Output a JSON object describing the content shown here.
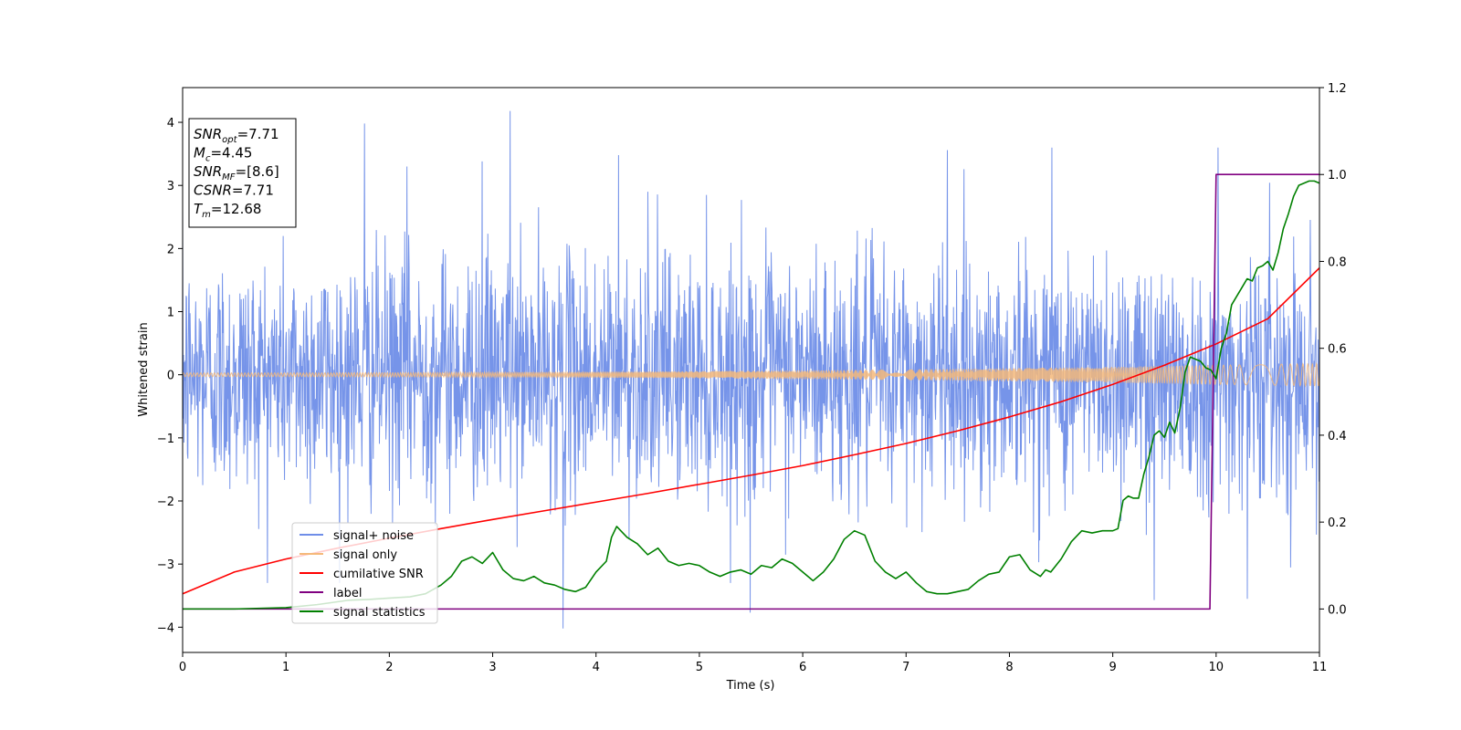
{
  "chart_data": {
    "type": "line",
    "title": "",
    "xlabel": "Time (s)",
    "ylabel": "Whitened strain",
    "xlim": [
      0,
      11
    ],
    "ylim_left": [
      -4.4,
      4.55
    ],
    "ylim_right": [
      -0.1,
      1.2
    ],
    "xticks": [
      0,
      1,
      2,
      3,
      4,
      5,
      6,
      7,
      8,
      9,
      10,
      11
    ],
    "yticks_left": [
      -4,
      -3,
      -2,
      -1,
      0,
      1,
      2,
      3,
      4
    ],
    "yticks_right": [
      0.0,
      0.2,
      0.4,
      0.6,
      0.8,
      1.0,
      1.2
    ],
    "grid": false,
    "legend_position": "lower-left",
    "info_box": [
      {
        "base": "SNR",
        "sub": "opt",
        "value": "=7.71"
      },
      {
        "base": "M",
        "sub": "c",
        "value": "=4.45"
      },
      {
        "base": "SNR",
        "sub": "MF",
        "value": "=[8.6]"
      },
      {
        "base": "CSNR",
        "sub": "",
        "value": "=7.71"
      },
      {
        "base": "T",
        "sub": "m",
        "value": "=12.68"
      }
    ],
    "series": [
      {
        "name": "signal+ noise",
        "axis": "left",
        "color": "#6f8ee8",
        "style": "noise band, approx. gaussian sigma ~0.95, peaks ~+4.2 / -4.0",
        "peaks": [
          {
            "x": 1.76,
            "y": 3.98
          },
          {
            "x": 2.17,
            "y": 3.3
          },
          {
            "x": 2.9,
            "y": 3.38
          },
          {
            "x": 3.17,
            "y": 4.18
          },
          {
            "x": 3.68,
            "y": -4.02
          },
          {
            "x": 4.22,
            "y": 3.48
          },
          {
            "x": 5.49,
            "y": -3.77
          },
          {
            "x": 7.4,
            "y": 3.56
          },
          {
            "x": 8.41,
            "y": 3.6
          },
          {
            "x": 9.4,
            "y": -3.57
          },
          {
            "x": 10.02,
            "y": 3.6
          },
          {
            "x": 10.3,
            "y": -3.55
          },
          {
            "x": 5.1,
            "y": -1.35
          },
          {
            "x": 4.5,
            "y": 2.9
          }
        ]
      },
      {
        "name": "signal only",
        "axis": "left",
        "color": "#f5b97a",
        "style": "chirp, amplitude growing from 0.03 to 0.18"
      },
      {
        "name": "cumilative SNR",
        "axis": "right",
        "color": "#ff0000",
        "x": [
          0,
          0.5,
          1,
          1.5,
          2,
          2.5,
          3,
          3.5,
          4,
          4.5,
          5,
          5.5,
          6,
          6.5,
          7,
          7.5,
          8,
          8.5,
          9,
          9.5,
          10,
          10.5,
          11
        ],
        "values": [
          0.035,
          0.085,
          0.115,
          0.14,
          0.163,
          0.185,
          0.206,
          0.226,
          0.246,
          0.266,
          0.287,
          0.308,
          0.33,
          0.355,
          0.381,
          0.41,
          0.442,
          0.477,
          0.517,
          0.561,
          0.61,
          0.668,
          0.785
        ]
      },
      {
        "name": "label",
        "axis": "right",
        "color": "#800080",
        "x": [
          0,
          9.94,
          10.0,
          11
        ],
        "values": [
          0.0,
          0.0,
          1.0,
          1.0
        ]
      },
      {
        "name": "signal statistics",
        "axis": "right",
        "color": "#008000",
        "x": [
          0,
          0.5,
          1,
          1.3,
          1.6,
          1.8,
          2,
          2.2,
          2.35,
          2.5,
          2.6,
          2.7,
          2.8,
          2.9,
          3.0,
          3.1,
          3.2,
          3.3,
          3.4,
          3.5,
          3.6,
          3.7,
          3.8,
          3.9,
          4.0,
          4.1,
          4.15,
          4.2,
          4.3,
          4.4,
          4.5,
          4.6,
          4.7,
          4.8,
          4.9,
          5.0,
          5.1,
          5.2,
          5.3,
          5.4,
          5.5,
          5.6,
          5.7,
          5.8,
          5.9,
          6.0,
          6.1,
          6.2,
          6.3,
          6.4,
          6.5,
          6.6,
          6.7,
          6.8,
          6.9,
          7.0,
          7.1,
          7.2,
          7.3,
          7.4,
          7.5,
          7.6,
          7.7,
          7.8,
          7.9,
          8.0,
          8.1,
          8.2,
          8.3,
          8.35,
          8.4,
          8.5,
          8.6,
          8.7,
          8.8,
          8.9,
          9.0,
          9.05,
          9.1,
          9.15,
          9.2,
          9.25,
          9.3,
          9.35,
          9.4,
          9.45,
          9.5,
          9.55,
          9.6,
          9.65,
          9.7,
          9.75,
          9.8,
          9.85,
          9.9,
          9.95,
          10.0,
          10.05,
          10.1,
          10.15,
          10.2,
          10.25,
          10.3,
          10.35,
          10.4,
          10.45,
          10.5,
          10.55,
          10.6,
          10.65,
          10.7,
          10.75,
          10.8,
          10.85,
          10.9,
          10.95,
          11.0
        ],
        "values": [
          0.0,
          0.0,
          0.003,
          0.01,
          0.02,
          0.022,
          0.025,
          0.028,
          0.035,
          0.055,
          0.075,
          0.11,
          0.12,
          0.105,
          0.13,
          0.09,
          0.07,
          0.065,
          0.075,
          0.06,
          0.055,
          0.045,
          0.04,
          0.05,
          0.085,
          0.11,
          0.165,
          0.19,
          0.165,
          0.15,
          0.125,
          0.14,
          0.11,
          0.1,
          0.105,
          0.1,
          0.085,
          0.075,
          0.085,
          0.09,
          0.08,
          0.1,
          0.095,
          0.115,
          0.105,
          0.085,
          0.065,
          0.085,
          0.115,
          0.16,
          0.18,
          0.17,
          0.11,
          0.085,
          0.07,
          0.085,
          0.06,
          0.04,
          0.035,
          0.035,
          0.04,
          0.045,
          0.065,
          0.08,
          0.085,
          0.12,
          0.125,
          0.09,
          0.075,
          0.09,
          0.085,
          0.115,
          0.155,
          0.18,
          0.175,
          0.18,
          0.18,
          0.185,
          0.25,
          0.26,
          0.255,
          0.255,
          0.31,
          0.35,
          0.4,
          0.41,
          0.395,
          0.43,
          0.405,
          0.46,
          0.545,
          0.58,
          0.575,
          0.57,
          0.555,
          0.55,
          0.53,
          0.6,
          0.635,
          0.7,
          0.72,
          0.74,
          0.76,
          0.755,
          0.785,
          0.79,
          0.8,
          0.78,
          0.82,
          0.875,
          0.91,
          0.95,
          0.975,
          0.98,
          0.985,
          0.985,
          0.98
        ]
      }
    ]
  }
}
